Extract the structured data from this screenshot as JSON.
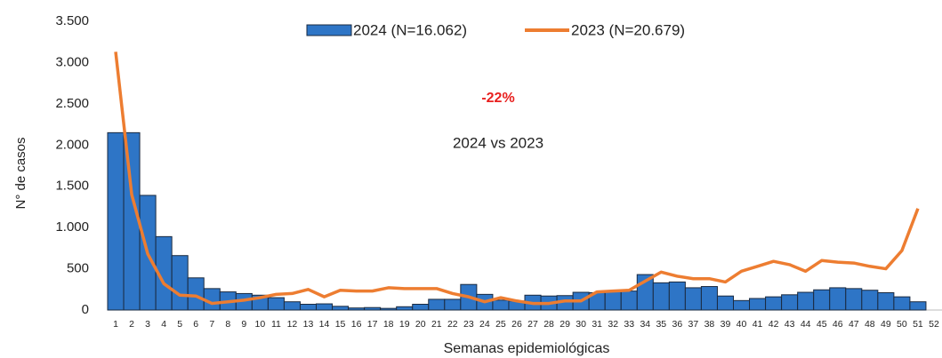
{
  "chart_data": {
    "type": "bar_line",
    "categories": [
      "1",
      "2",
      "3",
      "4",
      "5",
      "6",
      "7",
      "8",
      "9",
      "10",
      "11",
      "12",
      "13",
      "14",
      "15",
      "16",
      "17",
      "18",
      "19",
      "20",
      "21",
      "22",
      "23",
      "24",
      "25",
      "26",
      "27",
      "28",
      "29",
      "30",
      "31",
      "32",
      "33",
      "34",
      "35",
      "36",
      "37",
      "38",
      "39",
      "40",
      "41",
      "42",
      "43",
      "44",
      "45",
      "46",
      "47",
      "48",
      "49",
      "50",
      "51",
      "52"
    ],
    "series": [
      {
        "name": "2024 (N=16.062)",
        "kind": "bar",
        "color": "#2e75c6",
        "values": [
          2150,
          2150,
          1390,
          890,
          660,
          390,
          260,
          220,
          200,
          180,
          150,
          100,
          70,
          75,
          45,
          25,
          30,
          20,
          40,
          70,
          130,
          130,
          310,
          190,
          120,
          110,
          180,
          170,
          175,
          215,
          210,
          230,
          230,
          430,
          330,
          340,
          270,
          285,
          170,
          115,
          140,
          160,
          185,
          215,
          245,
          270,
          260,
          240,
          210,
          160,
          100,
          null
        ]
      },
      {
        "name": "2023 (N=20.679)",
        "kind": "line",
        "color": "#ed7d31",
        "values": [
          3130,
          1400,
          680,
          320,
          180,
          170,
          80,
          100,
          120,
          150,
          190,
          200,
          250,
          160,
          240,
          230,
          230,
          270,
          260,
          260,
          260,
          200,
          160,
          100,
          150,
          110,
          80,
          80,
          110,
          110,
          220,
          230,
          240,
          350,
          460,
          410,
          380,
          380,
          340,
          470,
          530,
          590,
          550,
          470,
          600,
          580,
          570,
          530,
          500,
          720,
          1230,
          null
        ]
      }
    ],
    "ylim": [
      0,
      3500
    ],
    "yticks": [
      0,
      500,
      {
        "value": 1000,
        "label": "1.000"
      },
      {
        "value": 1500,
        "label": "1.500"
      },
      {
        "value": 2000,
        "label": "2.000"
      },
      {
        "value": 2500,
        "label": "2.500"
      },
      {
        "value": 3000,
        "label": "3.000"
      },
      {
        "value": 3500,
        "label": "3.500"
      }
    ],
    "y_label": "N° de casos",
    "x_label": "Semanas epidemiológicas",
    "annotations": [
      "-22%",
      "2024 vs 2023"
    ]
  }
}
